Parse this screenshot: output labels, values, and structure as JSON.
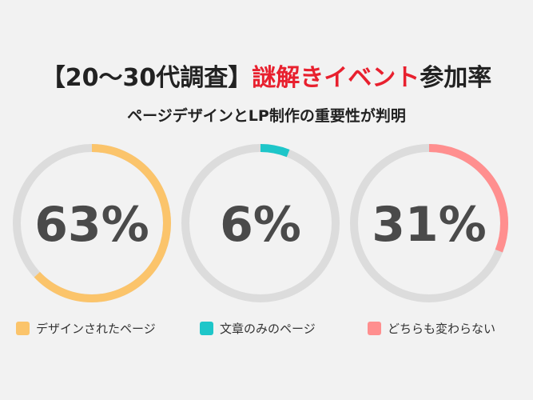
{
  "title": {
    "prefix": "【20〜30代調査】",
    "accent": "謎解きイベント",
    "suffix": "参加率"
  },
  "subtitle": "ページデザインとLP制作の重要性が判明",
  "colors": {
    "track": "#dcdcdc",
    "accent_text": "#e8202e",
    "value_text": "#4a4a4a"
  },
  "chart_data": {
    "type": "pie",
    "title": "【20〜30代調査】謎解きイベント参加率",
    "subtitle": "ページデザインとLP制作の重要性が判明",
    "legend_position": "bottom",
    "series": [
      {
        "name": "デザインされたページ",
        "value": 63,
        "label": "63%",
        "color": "#fbc46b"
      },
      {
        "name": "文章のみのページ",
        "value": 6,
        "label": "6%",
        "color": "#1ec6c9"
      },
      {
        "name": "どちらも変わらない",
        "value": 31,
        "label": "31%",
        "color": "#ff8f8f"
      }
    ]
  }
}
